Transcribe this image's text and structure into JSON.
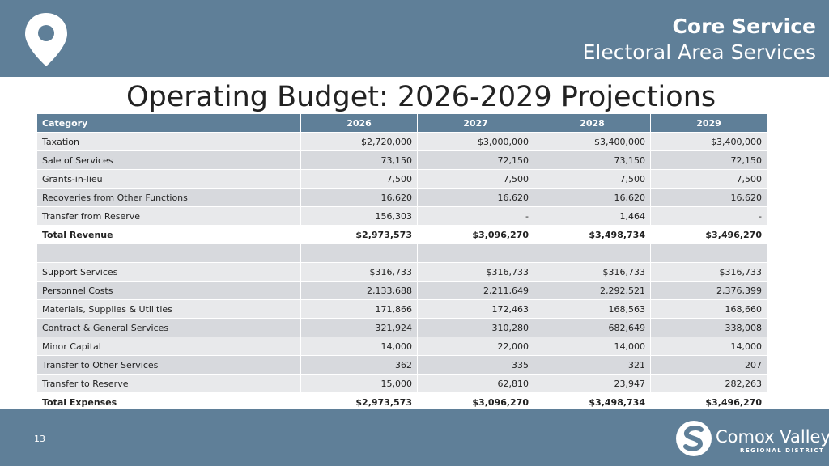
{
  "header": {
    "title": "Core Service",
    "subtitle": "Electoral Area Services"
  },
  "page": {
    "heading": "Operating Budget: 2026-2029 Projections",
    "number": "13"
  },
  "table": {
    "columns": [
      "Category",
      "2026",
      "2027",
      "2028",
      "2029"
    ],
    "rows": [
      {
        "label": "Taxation",
        "values": [
          "$2,720,000",
          "$3,000,000",
          "$3,400,000",
          "$3,400,000"
        ]
      },
      {
        "label": "Sale of Services",
        "values": [
          "73,150",
          "72,150",
          "73,150",
          "72,150"
        ]
      },
      {
        "label": "Grants-in-lieu",
        "values": [
          "7,500",
          "7,500",
          "7,500",
          "7,500"
        ]
      },
      {
        "label": "Recoveries from Other Functions",
        "values": [
          "16,620",
          "16,620",
          "16,620",
          "16,620"
        ]
      },
      {
        "label": "Transfer from Reserve",
        "values": [
          "156,303",
          "-",
          "1,464",
          "-"
        ]
      },
      {
        "label": "Total Revenue",
        "values": [
          "$2,973,573",
          "$3,096,270",
          "$3,498,734",
          "$3,496,270"
        ]
      },
      {
        "label": "",
        "values": [
          "",
          "",
          "",
          ""
        ]
      },
      {
        "label": "Support Services",
        "values": [
          "$316,733",
          "$316,733",
          "$316,733",
          "$316,733"
        ]
      },
      {
        "label": "Personnel Costs",
        "values": [
          "2,133,688",
          "2,211,649",
          "2,292,521",
          "2,376,399"
        ]
      },
      {
        "label": "Materials, Supplies & Utilities",
        "values": [
          "171,866",
          "172,463",
          "168,563",
          "168,660"
        ]
      },
      {
        "label": "Contract & General Services",
        "values": [
          "321,924",
          "310,280",
          "682,649",
          "338,008"
        ]
      },
      {
        "label": "Minor Capital",
        "values": [
          "14,000",
          "22,000",
          "14,000",
          "14,000"
        ]
      },
      {
        "label": "Transfer to Other Services",
        "values": [
          "362",
          "335",
          "321",
          "207"
        ]
      },
      {
        "label": "Transfer to Reserve",
        "values": [
          "15,000",
          "62,810",
          "23,947",
          "282,263"
        ]
      },
      {
        "label": "Total Expenses",
        "values": [
          "$2,973,573",
          "$3,096,270",
          "$3,498,734",
          "$3,496,270"
        ]
      }
    ]
  },
  "footer": {
    "logo_name": "Comox Valley",
    "logo_tagline": "REGIONAL DISTRICT"
  },
  "icons": {
    "header": "location-pin-icon",
    "footer": "comox-valley-logo-icon"
  },
  "colors": {
    "band": "#5f7f98",
    "row_light": "#e8e9eb",
    "row_dark": "#d7d9dd",
    "text": "#222222"
  }
}
